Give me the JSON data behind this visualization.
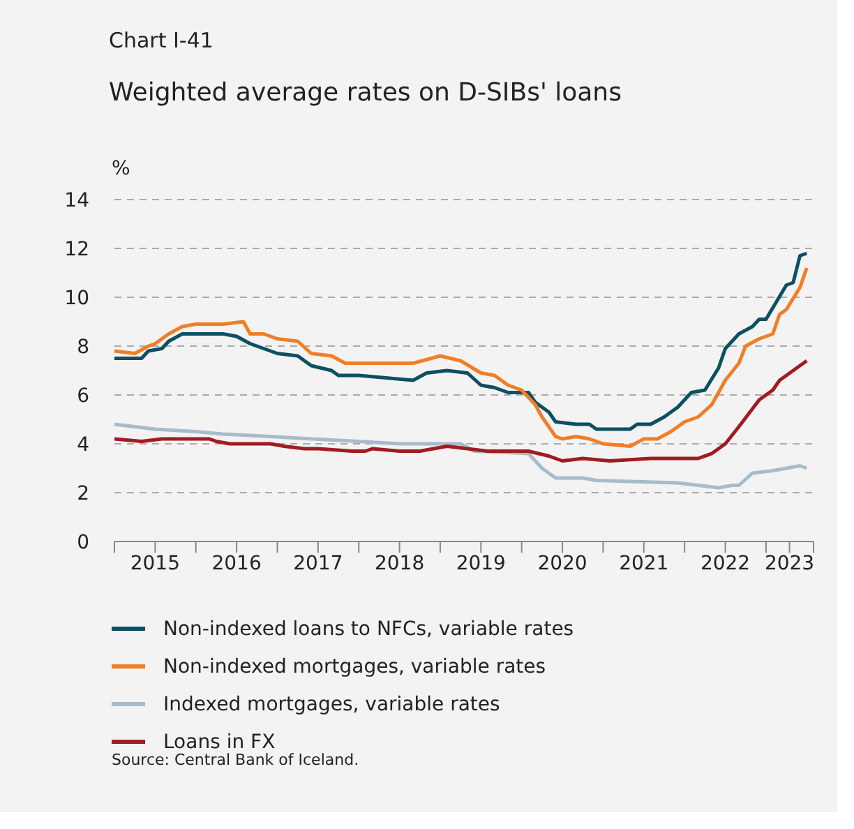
{
  "chart_data": {
    "type": "line",
    "subtitle": "Chart I-41",
    "title": "Weighted average rates on D-SIBs' loans",
    "ylabel": "%",
    "xlim": [
      "2015-01",
      "2023-08"
    ],
    "xticks": [
      {
        "value": "2015-01",
        "label": null
      },
      {
        "value": "2015-07",
        "label": "2015"
      },
      {
        "value": "2016-01",
        "label": null
      },
      {
        "value": "2016-07",
        "label": "2016"
      },
      {
        "value": "2017-01",
        "label": null
      },
      {
        "value": "2017-07",
        "label": "2017"
      },
      {
        "value": "2018-01",
        "label": null
      },
      {
        "value": "2018-07",
        "label": "2018"
      },
      {
        "value": "2019-01",
        "label": null
      },
      {
        "value": "2019-07",
        "label": "2019"
      },
      {
        "value": "2020-01",
        "label": null
      },
      {
        "value": "2020-07",
        "label": "2020"
      },
      {
        "value": "2021-01",
        "label": null
      },
      {
        "value": "2021-07",
        "label": "2021"
      },
      {
        "value": "2022-01",
        "label": null
      },
      {
        "value": "2022-07",
        "label": "2022"
      },
      {
        "value": "2023-01",
        "label": null
      },
      {
        "value": "2023-04-15",
        "label": "2023"
      },
      {
        "value": "2023-08",
        "label": null
      }
    ],
    "ylim": [
      0,
      14
    ],
    "yticks": [
      0,
      2,
      4,
      6,
      8,
      10,
      12,
      14
    ],
    "grid": "y",
    "legend": "bottom",
    "line_style": "solid",
    "marker": "none",
    "series": [
      {
        "name": "Non-indexed loans to NFCs, variable rates",
        "color": "#0d4f63",
        "x": [
          "2015-01",
          "2015-04",
          "2015-05",
          "2015-06",
          "2015-08",
          "2015-09",
          "2015-11",
          "2016-01",
          "2016-05",
          "2016-07",
          "2016-09",
          "2016-11",
          "2017-01",
          "2017-04",
          "2017-06",
          "2017-09",
          "2017-10",
          "2018-01",
          "2018-05",
          "2018-09",
          "2018-11",
          "2019-02",
          "2019-05",
          "2019-07",
          "2019-09",
          "2019-11",
          "2020-02",
          "2020-03",
          "2020-05",
          "2020-06",
          "2020-09",
          "2020-11",
          "2020-12",
          "2021-05",
          "2021-06",
          "2021-08",
          "2021-10",
          "2021-12",
          "2022-02",
          "2022-04",
          "2022-06",
          "2022-07",
          "2022-09",
          "2022-11",
          "2022-12",
          "2023-01",
          "2023-04",
          "2023-05",
          "2023-06",
          "2023-07"
        ],
        "values": [
          7.5,
          7.5,
          7.5,
          7.8,
          7.9,
          8.2,
          8.5,
          8.5,
          8.5,
          8.4,
          8.1,
          7.9,
          7.7,
          7.6,
          7.2,
          7.0,
          6.8,
          6.8,
          6.7,
          6.6,
          6.9,
          7.0,
          6.9,
          6.4,
          6.3,
          6.1,
          6.1,
          5.7,
          5.3,
          4.9,
          4.8,
          4.8,
          4.6,
          4.6,
          4.8,
          4.8,
          5.1,
          5.5,
          6.1,
          6.2,
          7.1,
          7.9,
          8.5,
          8.8,
          9.1,
          9.1,
          10.5,
          10.6,
          11.7,
          11.8
        ]
      },
      {
        "name": "Non-indexed mortgages, variable rates",
        "color": "#f07e26",
        "x": [
          "2015-01",
          "2015-04",
          "2015-06",
          "2015-07",
          "2015-09",
          "2015-11",
          "2016-01",
          "2016-05",
          "2016-08",
          "2016-09",
          "2016-11",
          "2017-01",
          "2017-04",
          "2017-06",
          "2017-09",
          "2017-11",
          "2018-04",
          "2018-09",
          "2019-01",
          "2019-04",
          "2019-07",
          "2019-09",
          "2019-11",
          "2020-01",
          "2020-03",
          "2020-04",
          "2020-06",
          "2020-07",
          "2020-09",
          "2020-11",
          "2021-01",
          "2021-05",
          "2021-07",
          "2021-09",
          "2021-11",
          "2022-01",
          "2022-03",
          "2022-05",
          "2022-07",
          "2022-09",
          "2022-10",
          "2022-12",
          "2023-02",
          "2023-03",
          "2023-04",
          "2023-06",
          "2023-07"
        ],
        "values": [
          7.8,
          7.7,
          8.0,
          8.1,
          8.5,
          8.8,
          8.9,
          8.9,
          9.0,
          8.5,
          8.5,
          8.3,
          8.2,
          7.7,
          7.6,
          7.3,
          7.3,
          7.3,
          7.6,
          7.4,
          6.9,
          6.8,
          6.4,
          6.2,
          5.6,
          5.1,
          4.3,
          4.2,
          4.3,
          4.2,
          4.0,
          3.9,
          4.2,
          4.2,
          4.5,
          4.9,
          5.1,
          5.6,
          6.6,
          7.3,
          8.0,
          8.3,
          8.5,
          9.3,
          9.5,
          10.4,
          11.2
        ]
      },
      {
        "name": "Indexed mortgages, variable rates",
        "color": "#a7bccb",
        "x": [
          "2015-01",
          "2015-07",
          "2016-01",
          "2016-05",
          "2016-12",
          "2017-06",
          "2018-01",
          "2018-07",
          "2019-01",
          "2019-04",
          "2019-06",
          "2020-02",
          "2020-04",
          "2020-06",
          "2020-10",
          "2020-12",
          "2021-12",
          "2022-03",
          "2022-06",
          "2022-08",
          "2022-09",
          "2022-11",
          "2023-02",
          "2023-04",
          "2023-06",
          "2023-07"
        ],
        "values": [
          4.8,
          4.6,
          4.5,
          4.4,
          4.3,
          4.2,
          4.1,
          4.0,
          4.0,
          4.0,
          3.7,
          3.6,
          3.0,
          2.6,
          2.6,
          2.5,
          2.4,
          2.3,
          2.2,
          2.3,
          2.3,
          2.8,
          2.9,
          3.0,
          3.1,
          3.0
        ]
      },
      {
        "name": "Loans in FX",
        "color": "#a01c22",
        "x": [
          "2015-01",
          "2015-05",
          "2015-08",
          "2016-03",
          "2016-04",
          "2016-06",
          "2016-12",
          "2017-02",
          "2017-05",
          "2017-07",
          "2017-12",
          "2018-02",
          "2018-03",
          "2018-07",
          "2018-10",
          "2019-02",
          "2019-05",
          "2019-08",
          "2020-02",
          "2020-05",
          "2020-07",
          "2020-10",
          "2021-02",
          "2021-08",
          "2022-03",
          "2022-05",
          "2022-07",
          "2022-09",
          "2022-12",
          "2023-02",
          "2023-03",
          "2023-05",
          "2023-07"
        ],
        "values": [
          4.2,
          4.1,
          4.2,
          4.2,
          4.1,
          4.0,
          4.0,
          3.9,
          3.8,
          3.8,
          3.7,
          3.7,
          3.8,
          3.7,
          3.7,
          3.9,
          3.8,
          3.7,
          3.7,
          3.5,
          3.3,
          3.4,
          3.3,
          3.4,
          3.4,
          3.6,
          4.0,
          4.7,
          5.8,
          6.2,
          6.6,
          7.0,
          7.4
        ]
      }
    ],
    "annotations": [
      "Source: Central Bank of Iceland."
    ]
  }
}
